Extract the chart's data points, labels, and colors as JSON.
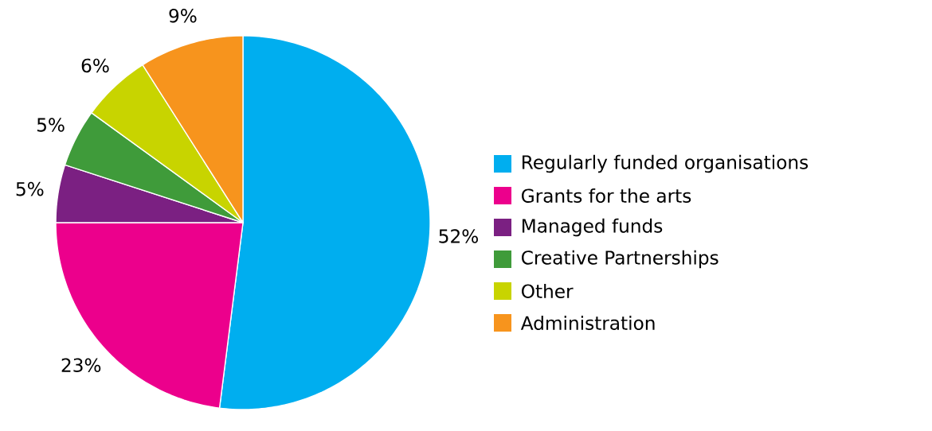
{
  "chart_data": {
    "type": "pie",
    "categories": [
      "Regularly funded organisations",
      "Grants for the arts",
      "Managed funds",
      "Creative Partnerships",
      "Other",
      "Administration"
    ],
    "values": [
      52,
      23,
      5,
      5,
      6,
      9
    ],
    "value_labels": [
      "52%",
      "23%",
      "5%",
      "5%",
      "6%",
      "9%"
    ],
    "colors": [
      "#00aeef",
      "#ec008c",
      "#7b2082",
      "#3f9b3a",
      "#c8d400",
      "#f7941d"
    ],
    "legend": "right"
  }
}
